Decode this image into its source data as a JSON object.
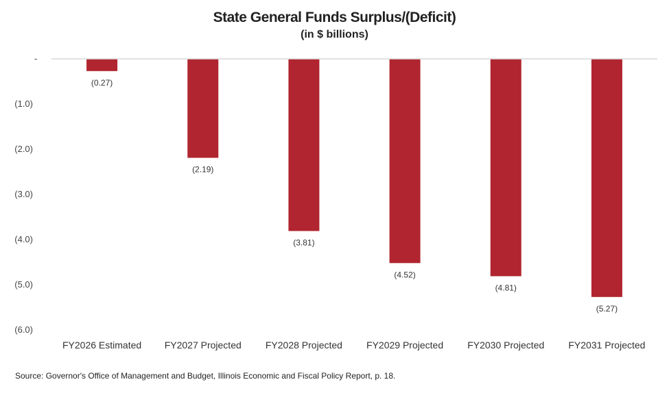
{
  "chart_data": {
    "type": "bar",
    "title": "State General Funds Surplus/(Deficit)",
    "subtitle": "(in $ billions)",
    "categories": [
      "FY2026 Estimated",
      "FY2027 Projected",
      "FY2028 Projected",
      "FY2029 Projected",
      "FY2030 Projected",
      "FY2031 Projected"
    ],
    "values": [
      -0.27,
      -2.19,
      -3.81,
      -4.52,
      -4.81,
      -5.27
    ],
    "data_labels": [
      "(0.27)",
      "(2.19)",
      "(3.81)",
      "(4.52)",
      "(4.81)",
      "(5.27)"
    ],
    "ylim": [
      -6,
      0
    ],
    "yticks": [
      0,
      -1,
      -2,
      -3,
      -4,
      -5,
      -6
    ],
    "ytick_labels": [
      "-",
      "(1.0)",
      "(2.0)",
      "(3.0)",
      "(4.0)",
      "(5.0)",
      "(6.0)"
    ],
    "grid": false,
    "bar_color": "#b0252f",
    "source": "Source: Governor's Office of Management and Budget, Illinois Economic and Fiscal Policy Report, p. 18."
  }
}
